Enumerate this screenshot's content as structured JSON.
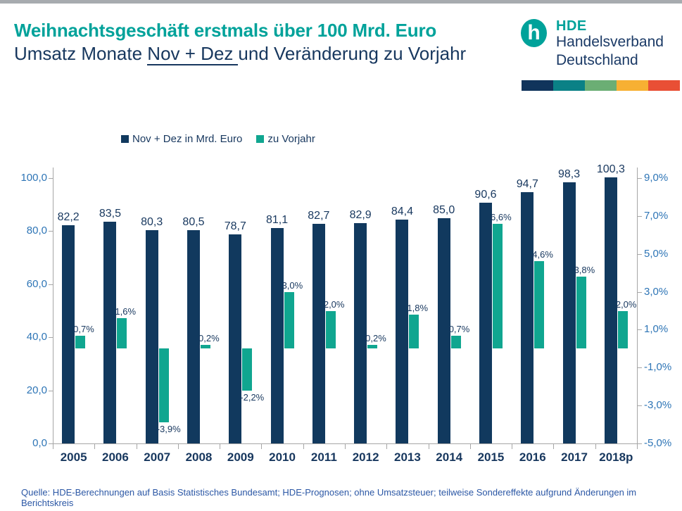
{
  "header": {
    "title": "Weihnachtsgeschäft erstmals über 100 Mrd. Euro",
    "subtitle_prefix": "Umsatz Monate ",
    "subtitle_underlined": "Nov + Dez",
    "subtitle_suffix": "und Veränderung zu Vorjahr"
  },
  "logo": {
    "glyph": "h",
    "abbr": "HDE",
    "line1": "Handelsverband",
    "line2": "Deutschland",
    "circle_color": "#00A29A",
    "text_color": "#1B3A66"
  },
  "brand_bar_colors": [
    "#10345B",
    "#0A8186",
    "#6BAE74",
    "#F7B033",
    "#E94F35"
  ],
  "legend": {
    "items": [
      {
        "label": "Nov + Dez in Mrd. Euro",
        "color": "#11395E"
      },
      {
        "label": "zu Vorjahr",
        "color": "#10A690"
      }
    ]
  },
  "chart_data": {
    "type": "bar",
    "categories": [
      "2005",
      "2006",
      "2007",
      "2008",
      "2009",
      "2010",
      "2011",
      "2012",
      "2013",
      "2014",
      "2015",
      "2016",
      "2017",
      "2018p"
    ],
    "series": [
      {
        "name": "Nov + Dez in Mrd. Euro",
        "axis": "left",
        "color": "#11395E",
        "values": [
          82.2,
          83.5,
          80.3,
          80.5,
          78.7,
          81.1,
          82.7,
          82.9,
          84.4,
          85.0,
          90.6,
          94.7,
          98.3,
          100.3
        ]
      },
      {
        "name": "zu Vorjahr",
        "axis": "right",
        "color": "#10A690",
        "values": [
          0.7,
          1.6,
          -3.9,
          0.2,
          -2.2,
          3.0,
          2.0,
          0.2,
          1.8,
          0.7,
          6.6,
          4.6,
          3.8,
          2.0
        ]
      }
    ],
    "left_axis": {
      "min": 0,
      "max": 100,
      "ticks": [
        100,
        80,
        60,
        40,
        20,
        0
      ]
    },
    "right_axis": {
      "min": -5,
      "max": 9,
      "ticks": [
        9,
        7,
        5,
        3,
        1,
        -1,
        -3,
        -5
      ]
    },
    "grid": false,
    "legend_position": "top",
    "title": "Weihnachtsgeschäft erstmals über 100 Mrd. Euro",
    "xlabel": "",
    "ylabel_left": "Nov + Dez in Mrd. Euro",
    "ylabel_right": "zu Vorjahr (%)"
  },
  "footer": {
    "source": "Quelle: HDE-Berechnungen auf Basis Statistisches Bundesamt; HDE-Prognosen; ohne Umsatzsteuer; teilweise Sondereffekte aufgrund Änderungen im Berichtskreis"
  }
}
